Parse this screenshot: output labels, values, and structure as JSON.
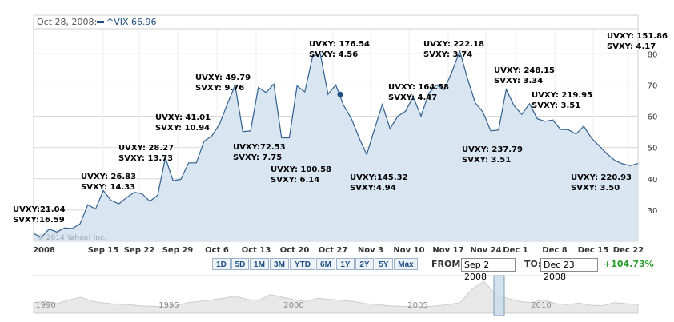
{
  "header": {
    "date": "Oct 28, 2008:",
    "symbol": "^VIX 66.96"
  },
  "copyright": "© 2014 Yahoo! Inc.",
  "colors": {
    "line": "#2f5f8f",
    "fill": "#d9e6f2",
    "grid": "#d8d8d8",
    "change": "#2a9d2a"
  },
  "chart_data": {
    "type": "area",
    "series": [
      {
        "name": "^VIX",
        "values": [
          22.5,
          21.3,
          23.9,
          23.0,
          24.3,
          24.1,
          25.6,
          31.7,
          30.3,
          36.2,
          33.1,
          32.0,
          34.0,
          35.7,
          35.2,
          32.8,
          34.7,
          46.7,
          39.4,
          39.8,
          45.1,
          45.1,
          52.0,
          53.7,
          57.5,
          63.9,
          69.9,
          55.1,
          55.3,
          69.2,
          67.6,
          70.3,
          53.1,
          53.1,
          69.7,
          67.8,
          79.1,
          80.1,
          67.0,
          70.0,
          63.5,
          59.3,
          53.2,
          47.7,
          55.9,
          63.8,
          56.0,
          60.0,
          61.6,
          66.2,
          60.0,
          67.4,
          70.0,
          68.5,
          74.3,
          80.9,
          72.0,
          64.3,
          61.3,
          55.3,
          55.6,
          68.6,
          63.4,
          60.6,
          64.0,
          59.2,
          58.4,
          58.8,
          55.8,
          55.7,
          54.3,
          56.8,
          53.0,
          50.5,
          48.0,
          45.9,
          44.8,
          44.2,
          44.9
        ]
      }
    ],
    "x_ticks": [
      "2008",
      "Sep 15",
      "Sep 22",
      "Sep 29",
      "Oct 6",
      "Oct 13",
      "Oct 20",
      "Oct 27",
      "Nov 3",
      "Nov 10",
      "Nov 17",
      "Nov 24",
      "Dec 1",
      "Dec 8",
      "Dec 15",
      "Dec 22"
    ],
    "y_ticks": [
      30,
      40,
      50,
      60,
      70,
      80
    ],
    "ylim": [
      20,
      88
    ],
    "highlight": {
      "date": "Oct 28, 2008",
      "value": 66.96
    },
    "annotations": [
      {
        "lines": [
          "UVXY:21.04",
          "SVXY:16.59"
        ]
      },
      {
        "lines": [
          "UVXY: 26.83",
          "SVXY: 14.33"
        ]
      },
      {
        "lines": [
          "UVXY: 28.27",
          "SVXY: 13.73"
        ]
      },
      {
        "lines": [
          "UVXY: 41.01",
          "SVXY: 10.94"
        ]
      },
      {
        "lines": [
          "UVXY: 49.79",
          "SVXY: 9.76"
        ]
      },
      {
        "lines": [
          "UVXY:72.53",
          "SVXY: 7.75"
        ]
      },
      {
        "lines": [
          "UVXY: 100.58",
          "SVXY: 6.14"
        ]
      },
      {
        "lines": [
          "UVXY: 176.54",
          "SVXY: 4.56"
        ]
      },
      {
        "lines": [
          "UVXY:145.32",
          "SVXY:4.94"
        ]
      },
      {
        "lines": [
          "UVXY: 164.58",
          "SVXY: 4.47"
        ]
      },
      {
        "lines": [
          "UVXY: 222.18",
          "SVXY: 3.74"
        ]
      },
      {
        "lines": [
          "UVXY: 237.79",
          "SVXY: 3.51"
        ]
      },
      {
        "lines": [
          "UVXY: 248.15",
          "SVXY: 3.34"
        ]
      },
      {
        "lines": [
          "UVXY: 219.95",
          "SVXY: 3.51"
        ]
      },
      {
        "lines": [
          "UVXY: 220.93",
          "SVXY: 3.50"
        ]
      },
      {
        "lines": [
          "UVXY: 151.86",
          "SVXY: 4.17"
        ]
      }
    ]
  },
  "controls": {
    "ranges": [
      "1D",
      "5D",
      "1M",
      "3M",
      "YTD",
      "6M",
      "1Y",
      "2Y",
      "5Y",
      "Max"
    ],
    "from_label": "FROM:",
    "from_value": "Sep 2 2008",
    "to_label": "TO:",
    "to_value": "Dec 23 2008",
    "change": "+104.73%"
  },
  "navigator": {
    "years": [
      "1990",
      "1995",
      "2000",
      "2005",
      "2010"
    ],
    "history": [
      20,
      22,
      18,
      25,
      30,
      22,
      19,
      17,
      16,
      14,
      13,
      12,
      14,
      20,
      22,
      25,
      28,
      32,
      26,
      24,
      35,
      30,
      25,
      22,
      28,
      26,
      24,
      22,
      18,
      16,
      14,
      13,
      12,
      12,
      14,
      16,
      20,
      45,
      60,
      35,
      28,
      22,
      20,
      25,
      18,
      16,
      19,
      15,
      14,
      20,
      18,
      16
    ]
  }
}
